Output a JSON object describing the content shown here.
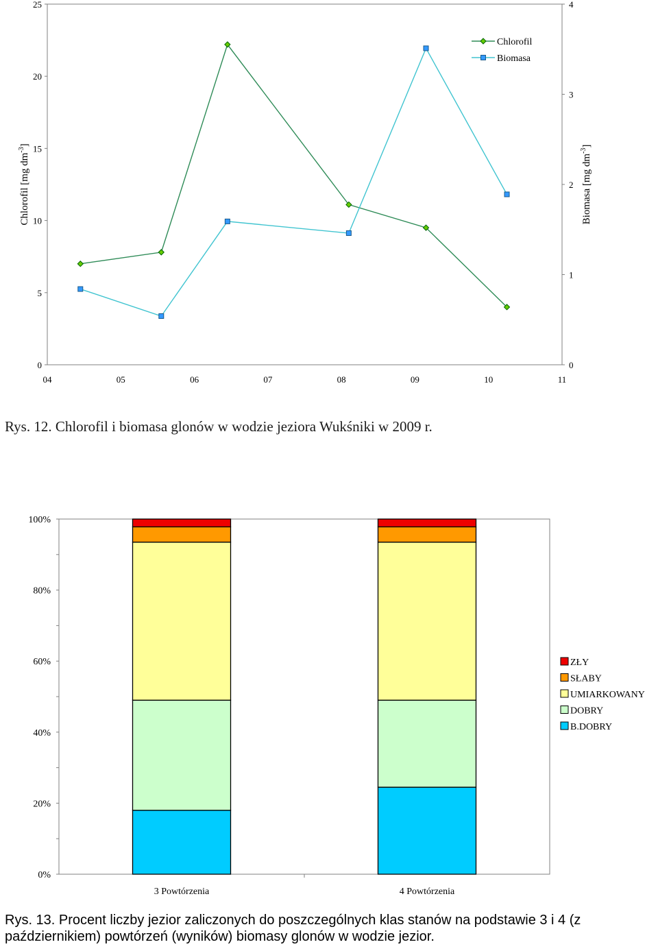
{
  "chart_data": [
    {
      "type": "line",
      "x_ticks": [
        "04",
        "05",
        "06",
        "07",
        "08",
        "09",
        "10",
        "11"
      ],
      "ylabel": "Chlorofil [mg dm-3]",
      "ylabel_main": "Chlorofil [mg dm",
      "ylabel_sup": "-3",
      "ylabel_close": "]",
      "ylim": [
        0,
        25
      ],
      "y_ticks": [
        "0",
        "5",
        "10",
        "15",
        "20",
        "25"
      ],
      "y2label": "Biomasa [mg dm-3]",
      "y2label_main": "Biomasa [mg dm",
      "y2label_sup": "-3",
      "y2label_close": "]",
      "y2lim": [
        0,
        4
      ],
      "y2_ticks": [
        "0",
        "1",
        "2",
        "3",
        "4"
      ],
      "legend_position": "top-right",
      "series": [
        {
          "name": "Chlorofil",
          "axis": "left",
          "color": "#2e8b57",
          "marker_color": "#66cc00",
          "marker": "diamond",
          "x": [
            4.45,
            5.55,
            6.45,
            8.1,
            9.15,
            10.25
          ],
          "values": [
            7.0,
            7.8,
            22.2,
            11.1,
            9.5,
            4.0
          ]
        },
        {
          "name": "Biomasa",
          "axis": "right",
          "color": "#40c4d0",
          "marker_color": "#3399ff",
          "marker": "square",
          "x": [
            4.45,
            5.55,
            6.45,
            8.1,
            9.15,
            10.25
          ],
          "values": [
            0.84,
            0.54,
            1.59,
            1.46,
            3.51,
            1.89
          ]
        }
      ]
    },
    {
      "type": "bar",
      "stacked": true,
      "categories": [
        "3 Powtórzenia",
        "4 Powtórzenia"
      ],
      "y_ticks": [
        "0%",
        "20%",
        "40%",
        "60%",
        "80%",
        "100%"
      ],
      "ylim": [
        0,
        100
      ],
      "legend_position": "right",
      "series": [
        {
          "name": "B.DOBRY",
          "color": "#00ccff",
          "values": [
            18,
            24.5
          ]
        },
        {
          "name": "DOBRY",
          "color": "#ccffcc",
          "values": [
            31,
            24.5
          ]
        },
        {
          "name": "UMIARKOWANY",
          "color": "#ffff99",
          "values": [
            44.5,
            44.5
          ]
        },
        {
          "name": "SŁABY",
          "color": "#ff9900",
          "values": [
            4.3,
            4.3
          ]
        },
        {
          "name": "ZŁY",
          "color": "#ee0000",
          "values": [
            2.2,
            2.2
          ]
        }
      ]
    }
  ],
  "captions": {
    "fig12": "Rys. 12. Chlorofil i biomasa glonów w wodzie jeziora Wukśniki w 2009 r.",
    "fig13": "Rys. 13. Procent liczby jezior zaliczonych do poszczególnych klas stanów na podstawie 3 i 4 (z październikiem) powtórzeń (wyników) biomasy glonów w wodzie jezior."
  }
}
